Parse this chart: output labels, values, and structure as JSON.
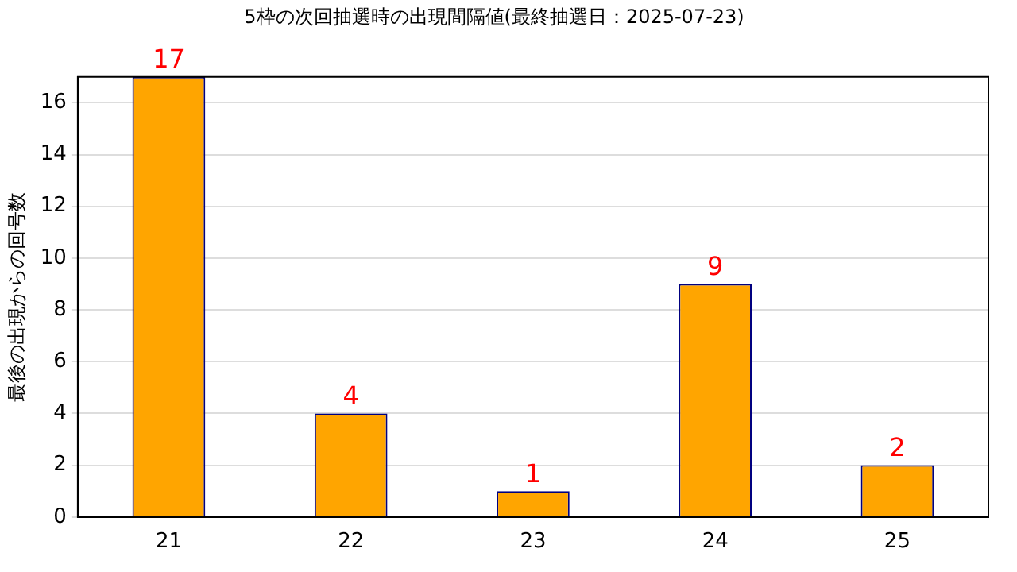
{
  "chart_data": {
    "type": "bar",
    "title": "5枠の次回抽選時の出現間隔値(最終抽選日：2025-07-23)",
    "ylabel": "最後の出現からの回号数",
    "categories": [
      "21",
      "22",
      "23",
      "24",
      "25"
    ],
    "values": [
      17,
      4,
      1,
      9,
      2
    ],
    "color": "#ffa500",
    "ylim": [
      0,
      17
    ],
    "yticks": [
      0,
      2,
      4,
      6,
      8,
      10,
      12,
      14,
      16
    ],
    "grid": "y",
    "data_labels": true,
    "legend": false
  }
}
